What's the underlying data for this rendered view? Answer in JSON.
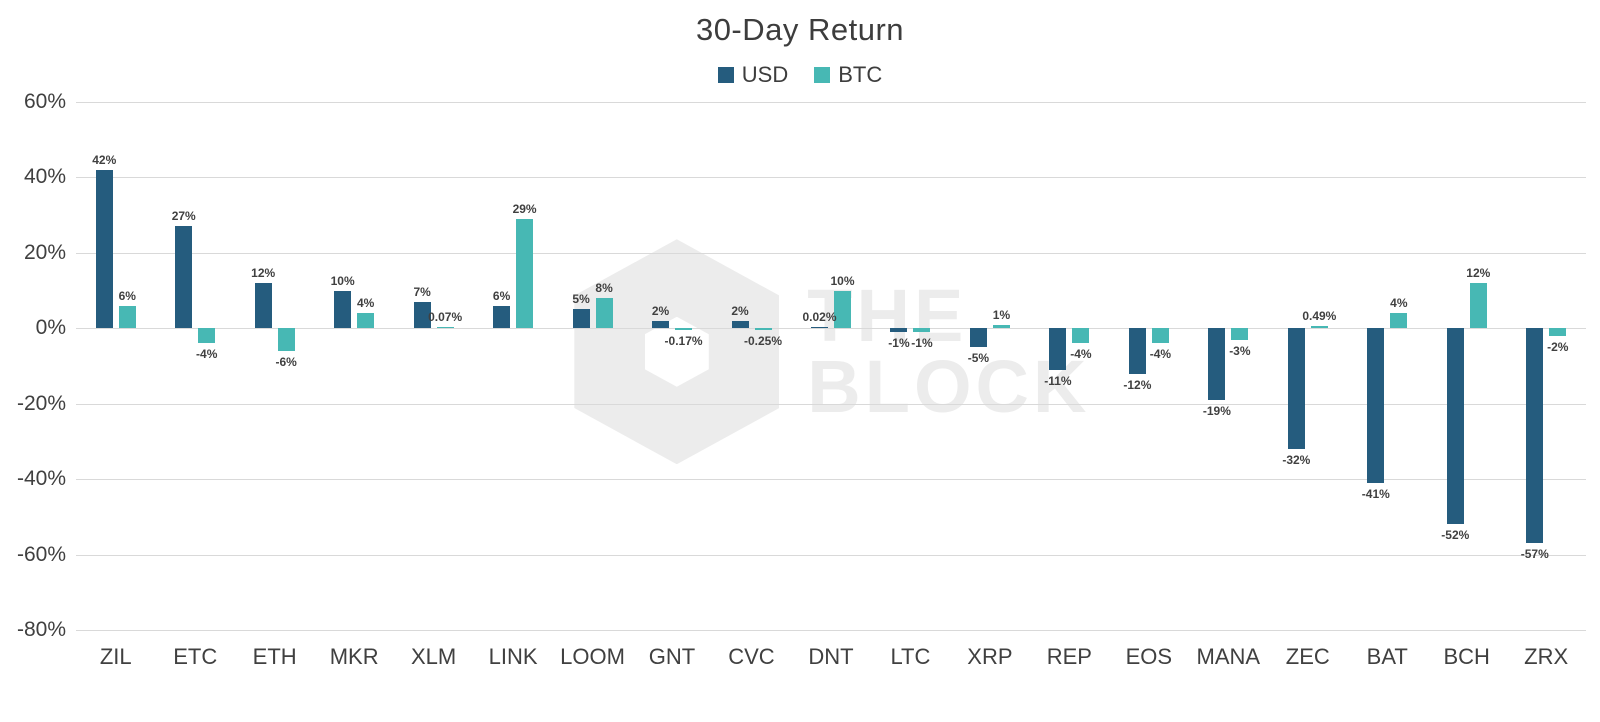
{
  "title": "30-Day Return",
  "legend": {
    "usd_label": "USD",
    "btc_label": "BTC"
  },
  "watermark": {
    "line1": "THE",
    "line2": "BLOCK"
  },
  "colors": {
    "usd": "#255C7E",
    "btc": "#47B8B4",
    "grid": "#d9d9d9"
  },
  "chart_data": {
    "type": "bar",
    "title": "30-Day Return",
    "categories": [
      "ZIL",
      "ETC",
      "ETH",
      "MKR",
      "XLM",
      "LINK",
      "LOOM",
      "GNT",
      "CVC",
      "DNT",
      "LTC",
      "XRP",
      "REP",
      "EOS",
      "MANA",
      "ZEC",
      "BAT",
      "BCH",
      "ZRX"
    ],
    "series": [
      {
        "name": "USD",
        "color": "#255C7E",
        "values": [
          42,
          27,
          12,
          10,
          7,
          6,
          5,
          2,
          2,
          0.02,
          -1,
          -5,
          -11,
          -12,
          -19,
          -32,
          -41,
          -52,
          -57
        ],
        "labels": [
          "42%",
          "27%",
          "12%",
          "10%",
          "7%",
          "6%",
          "5%",
          "2%",
          "2%",
          "0.02%",
          "-1%",
          "-5%",
          "-11%",
          "-12%",
          "-19%",
          "-32%",
          "-41%",
          "-52%",
          "-57%"
        ]
      },
      {
        "name": "BTC",
        "color": "#47B8B4",
        "values": [
          6,
          -4,
          -6,
          4,
          0.07,
          29,
          8,
          -0.17,
          -0.25,
          10,
          -1,
          1,
          -4,
          -4,
          -3,
          0.49,
          4,
          12,
          -2
        ],
        "labels": [
          "6%",
          "-4%",
          "-6%",
          "4%",
          "0.07%",
          "29%",
          "8%",
          "-0.17%",
          "-0.25%",
          "10%",
          "-1%",
          "1%",
          "-4%",
          "-4%",
          "-3%",
          "0.49%",
          "4%",
          "12%",
          "-2%"
        ]
      }
    ],
    "y_ticks": [
      "60%",
      "40%",
      "20%",
      "0%",
      "-20%",
      "-40%",
      "-60%",
      "-80%"
    ],
    "y_tick_values": [
      60,
      40,
      20,
      0,
      -20,
      -40,
      -60,
      -80
    ],
    "ylim": [
      -80,
      60
    ],
    "xlabel": "",
    "ylabel": "",
    "grid": true,
    "legend_position": "top"
  }
}
